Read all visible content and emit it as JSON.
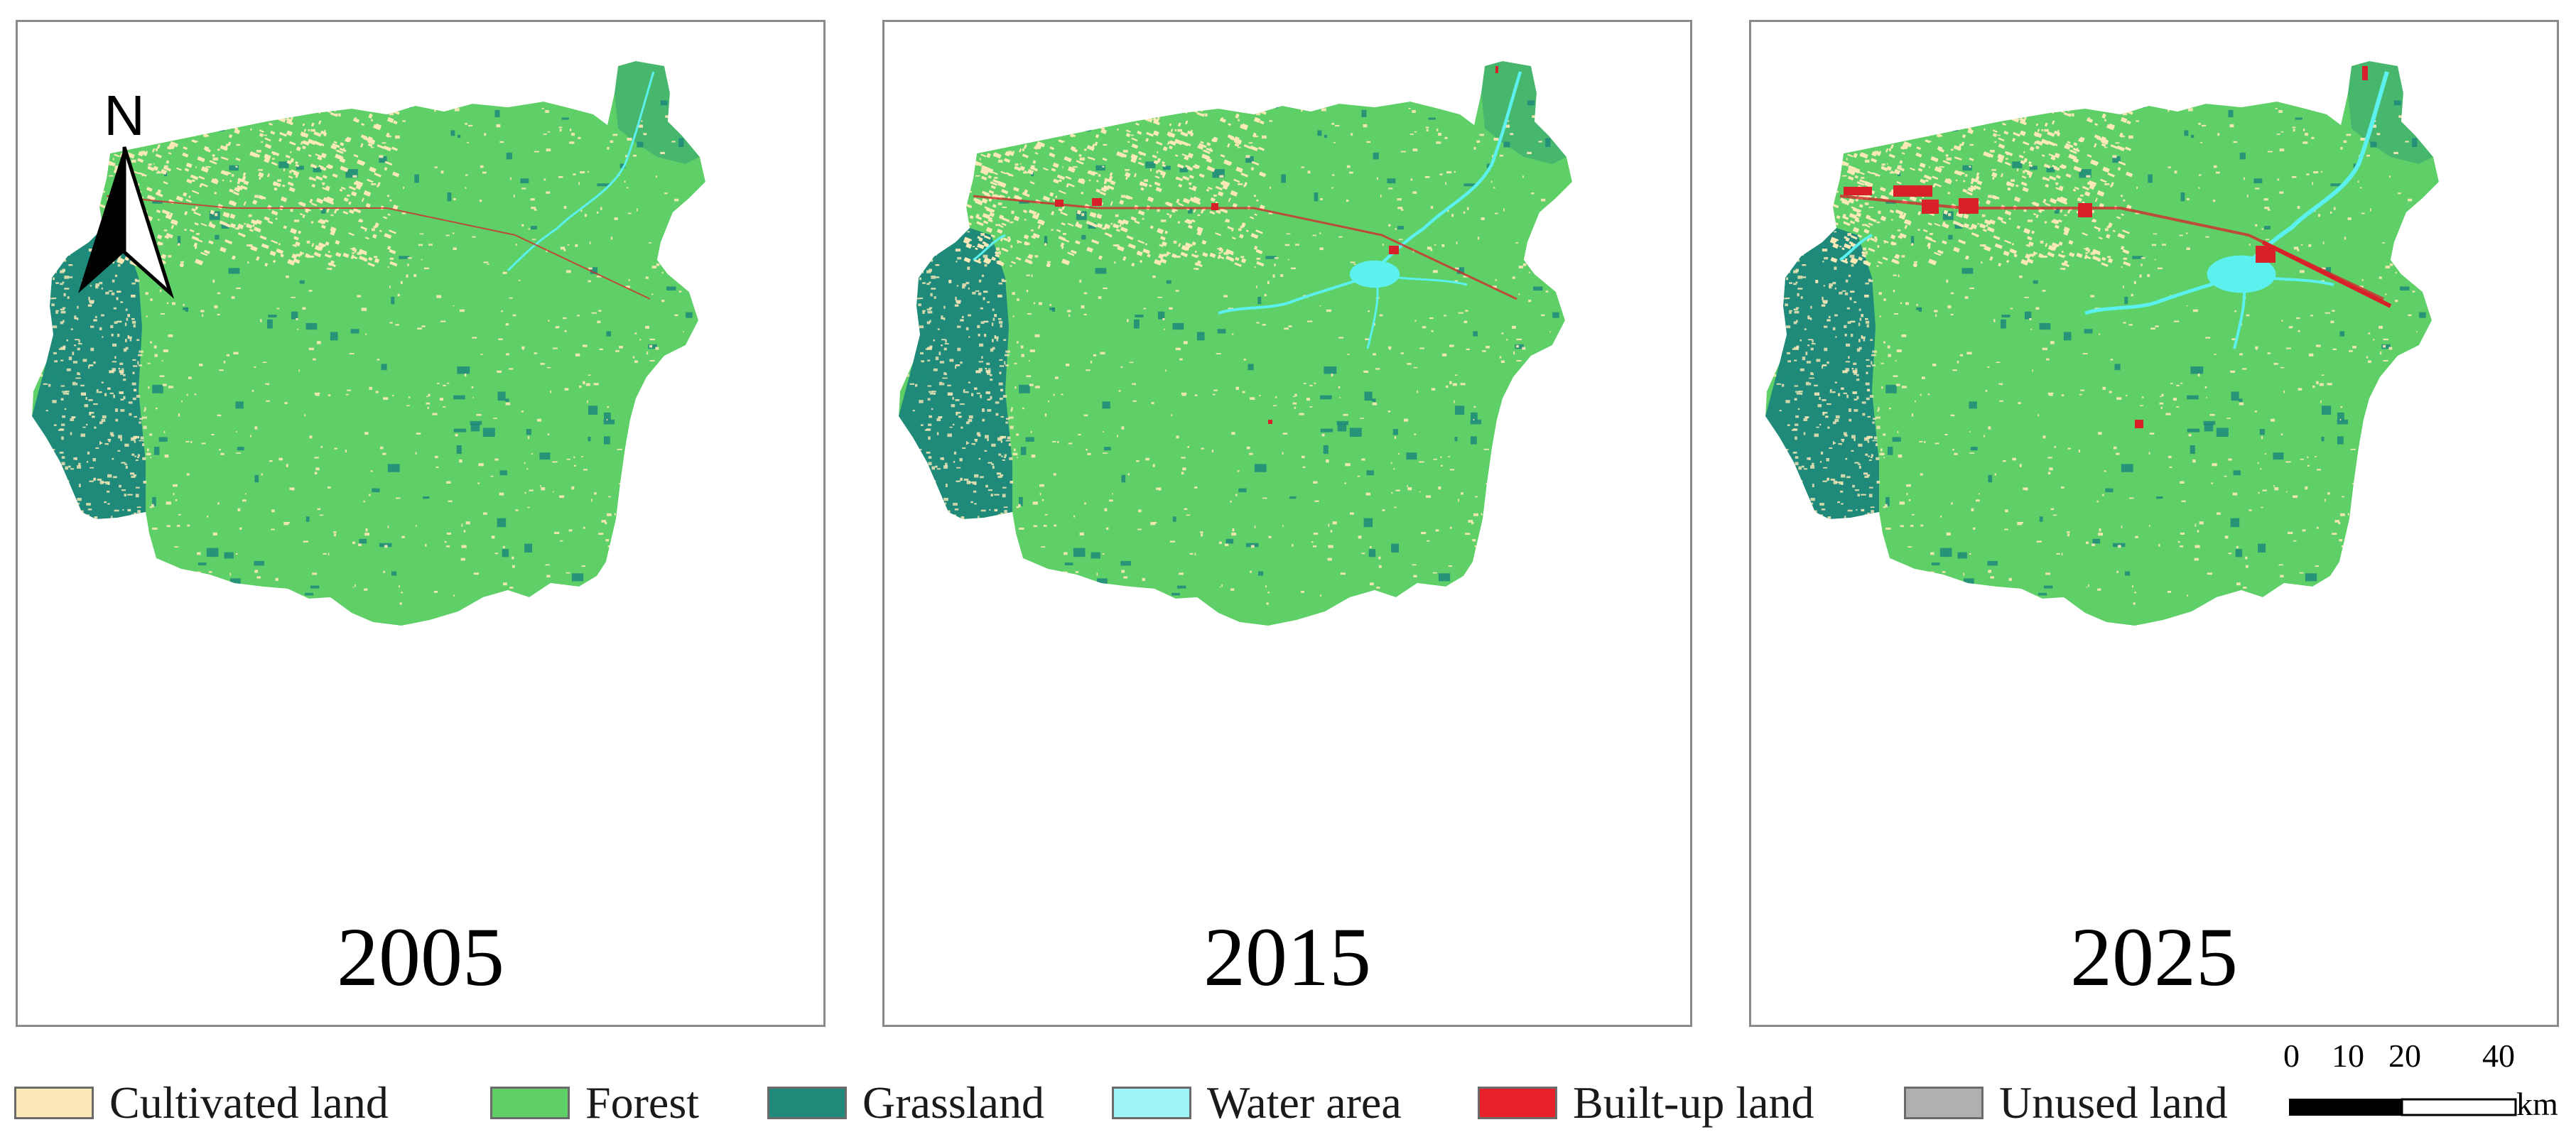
{
  "north_arrow": {
    "label": "N",
    "icon": "north-arrow-icon"
  },
  "panels": [
    {
      "year": "2005",
      "builtup_level": 0,
      "water_level": 0
    },
    {
      "year": "2015",
      "builtup_level": 1,
      "water_level": 1
    },
    {
      "year": "2025",
      "builtup_level": 2,
      "water_level": 2
    }
  ],
  "legend": [
    {
      "label": "Cultivated land",
      "color": "#fde8b8"
    },
    {
      "label": "Forest",
      "color": "#5fd068"
    },
    {
      "label": "Grassland",
      "color": "#1f8a7a"
    },
    {
      "label": "Water area",
      "color": "#9ff5f5"
    },
    {
      "label": "Built-up land",
      "color": "#e8202a"
    },
    {
      "label": "Unused land",
      "color": "#b0b0b0"
    }
  ],
  "scale_bar": {
    "ticks": [
      "0",
      "10",
      "20",
      "40"
    ],
    "unit": "km"
  },
  "colors": {
    "cultivated": "#fde8b8",
    "forest": "#5fd068",
    "grassland": "#1f8a7a",
    "water": "#5cf0ee",
    "builtup": "#d8202a",
    "frame": "#8a8a8a"
  }
}
